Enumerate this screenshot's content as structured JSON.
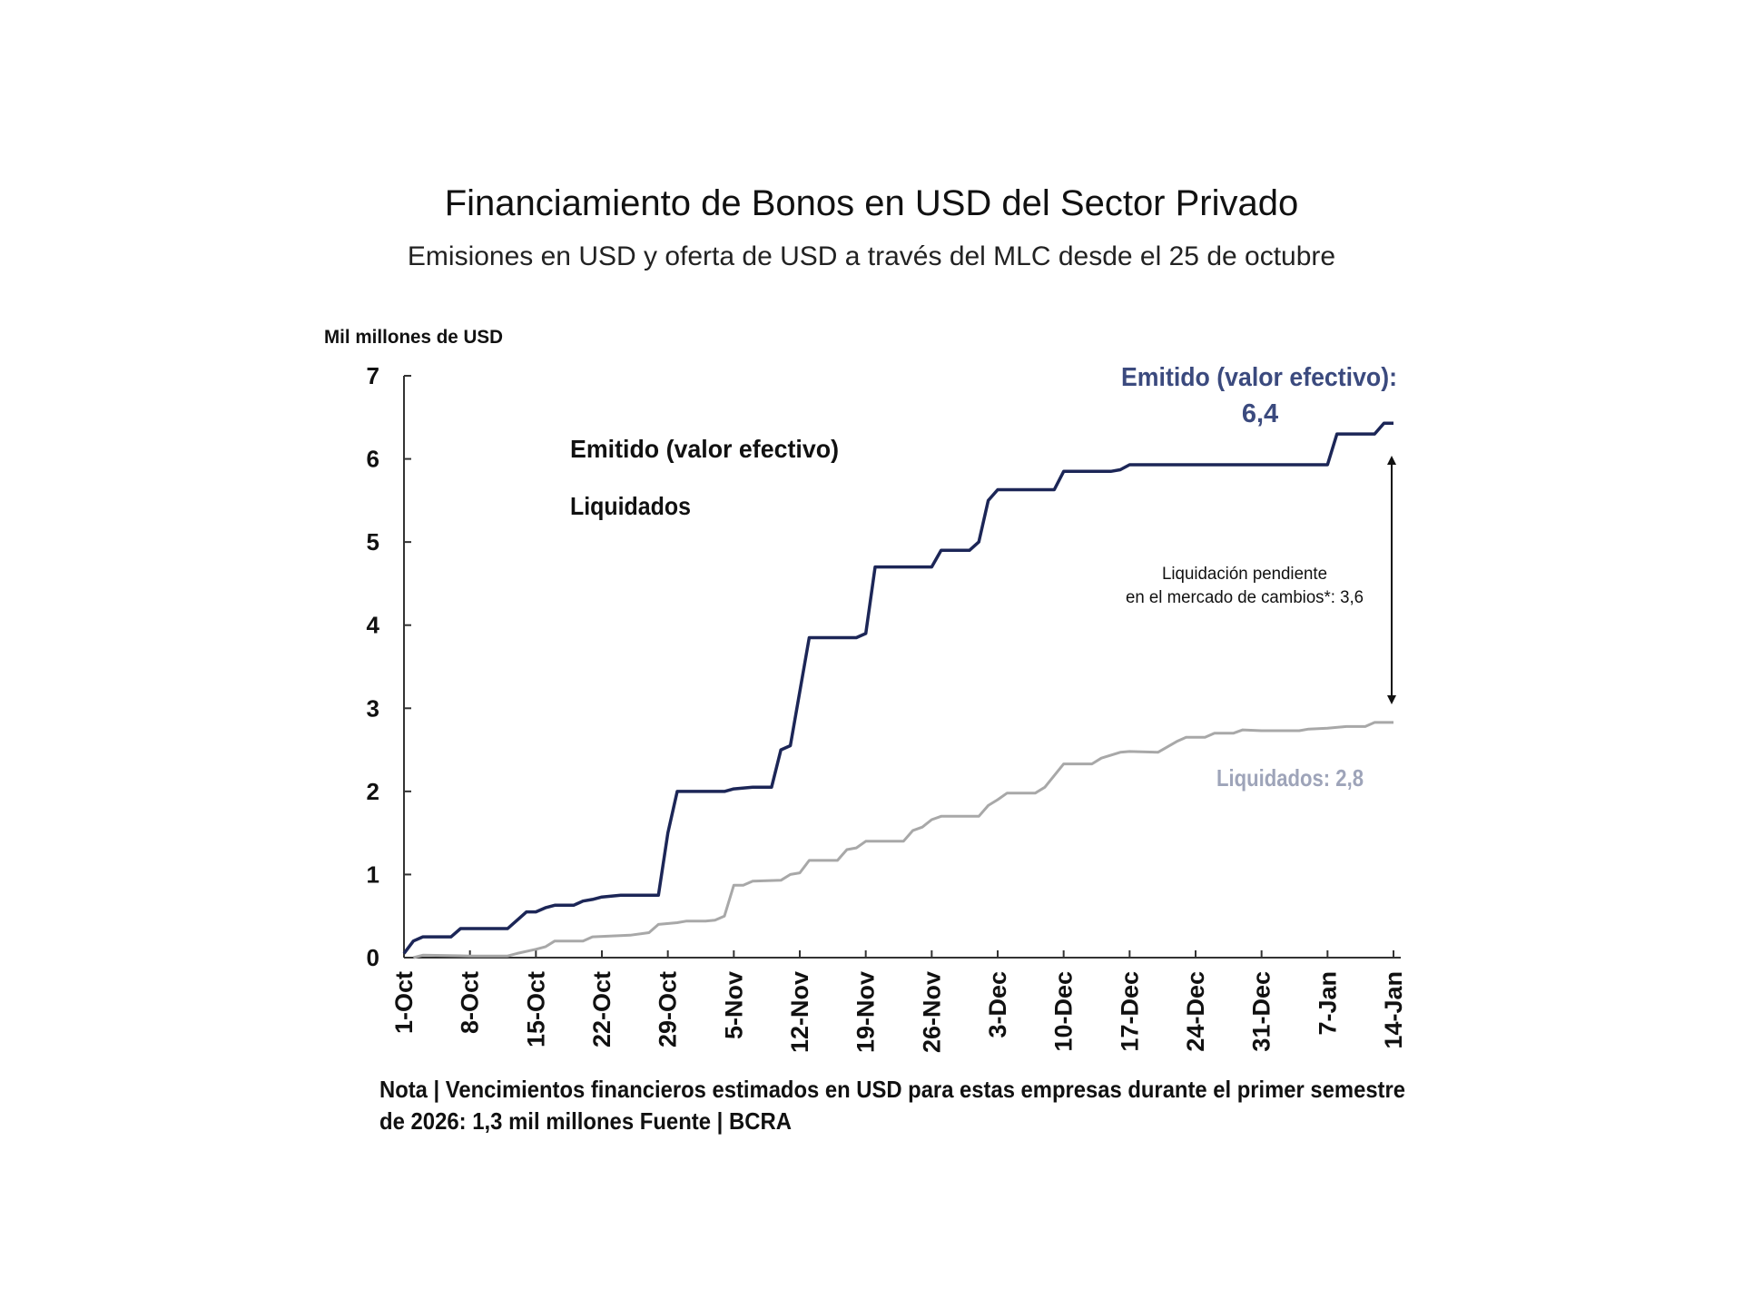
{
  "chart_data": {
    "type": "line",
    "title": "Financiamiento de Bonos en USD del Sector Privado",
    "subtitle": "Emisiones en USD y oferta de USD a través del MLC desde el 25 de octubre",
    "ylabel": "Mil millones de USD",
    "xlabel": "",
    "ylim": [
      0,
      7
    ],
    "yticks": [
      0,
      1,
      2,
      3,
      4,
      5,
      6,
      7
    ],
    "xlim": [
      "2025-10-01",
      "2026-01-14"
    ],
    "xticks": [
      {
        "date": "2025-10-01",
        "label": "1-Oct"
      },
      {
        "date": "2025-10-08",
        "label": "8-Oct"
      },
      {
        "date": "2025-10-15",
        "label": "15-Oct"
      },
      {
        "date": "2025-10-22",
        "label": "22-Oct"
      },
      {
        "date": "2025-10-29",
        "label": "29-Oct"
      },
      {
        "date": "2025-11-05",
        "label": "5-Nov"
      },
      {
        "date": "2025-11-12",
        "label": "12-Nov"
      },
      {
        "date": "2025-11-19",
        "label": "19-Nov"
      },
      {
        "date": "2025-11-26",
        "label": "26-Nov"
      },
      {
        "date": "2025-12-03",
        "label": "3-Dec"
      },
      {
        "date": "2025-12-10",
        "label": "10-Dec"
      },
      {
        "date": "2025-12-17",
        "label": "17-Dec"
      },
      {
        "date": "2025-12-24",
        "label": "24-Dec"
      },
      {
        "date": "2025-12-31",
        "label": "31-Dec"
      },
      {
        "date": "2026-01-07",
        "label": "7-Jan"
      },
      {
        "date": "2026-01-14",
        "label": "14-Jan"
      }
    ],
    "grid": false,
    "legend": {
      "placement": "top-left",
      "entries": [
        "Emitido (valor efectivo)",
        "Liquidados"
      ]
    },
    "series": [
      {
        "name": "Emitido (valor efectivo)",
        "color": "#1c2657",
        "points": [
          [
            "2025-10-01",
            0.05
          ],
          [
            "2025-10-02",
            0.2
          ],
          [
            "2025-10-03",
            0.25
          ],
          [
            "2025-10-06",
            0.25
          ],
          [
            "2025-10-07",
            0.35
          ],
          [
            "2025-10-12",
            0.35
          ],
          [
            "2025-10-13",
            0.45
          ],
          [
            "2025-10-14",
            0.55
          ],
          [
            "2025-10-15",
            0.55
          ],
          [
            "2025-10-16",
            0.6
          ],
          [
            "2025-10-17",
            0.63
          ],
          [
            "2025-10-19",
            0.63
          ],
          [
            "2025-10-20",
            0.68
          ],
          [
            "2025-10-21",
            0.7
          ],
          [
            "2025-10-22",
            0.73
          ],
          [
            "2025-10-24",
            0.75
          ],
          [
            "2025-10-28",
            0.75
          ],
          [
            "2025-10-29",
            1.5
          ],
          [
            "2025-10-30",
            2.0
          ],
          [
            "2025-11-04",
            2.0
          ],
          [
            "2025-11-05",
            2.03
          ],
          [
            "2025-11-07",
            2.05
          ],
          [
            "2025-11-09",
            2.05
          ],
          [
            "2025-11-10",
            2.5
          ],
          [
            "2025-11-11",
            2.55
          ],
          [
            "2025-11-13",
            3.85
          ],
          [
            "2025-11-18",
            3.85
          ],
          [
            "2025-11-19",
            3.9
          ],
          [
            "2025-11-20",
            4.7
          ],
          [
            "2025-11-26",
            4.7
          ],
          [
            "2025-11-27",
            4.9
          ],
          [
            "2025-11-30",
            4.9
          ],
          [
            "2025-12-01",
            5.0
          ],
          [
            "2025-12-02",
            5.5
          ],
          [
            "2025-12-03",
            5.63
          ],
          [
            "2025-12-09",
            5.63
          ],
          [
            "2025-12-10",
            5.85
          ],
          [
            "2025-12-15",
            5.85
          ],
          [
            "2025-12-16",
            5.87
          ],
          [
            "2025-12-17",
            5.93
          ],
          [
            "2026-01-07",
            5.93
          ],
          [
            "2026-01-08",
            6.3
          ],
          [
            "2026-01-12",
            6.3
          ],
          [
            "2026-01-13",
            6.43
          ],
          [
            "2026-01-14",
            6.43
          ]
        ]
      },
      {
        "name": "Liquidados",
        "color": "#a8a8a8",
        "points": [
          [
            "2025-10-02",
            0.0
          ],
          [
            "2025-10-03",
            0.03
          ],
          [
            "2025-10-08",
            0.02
          ],
          [
            "2025-10-12",
            0.02
          ],
          [
            "2025-10-13",
            0.05
          ],
          [
            "2025-10-15",
            0.1
          ],
          [
            "2025-10-16",
            0.13
          ],
          [
            "2025-10-17",
            0.2
          ],
          [
            "2025-10-20",
            0.2
          ],
          [
            "2025-10-21",
            0.25
          ],
          [
            "2025-10-25",
            0.27
          ],
          [
            "2025-10-27",
            0.3
          ],
          [
            "2025-10-28",
            0.4
          ],
          [
            "2025-10-30",
            0.42
          ],
          [
            "2025-10-31",
            0.44
          ],
          [
            "2025-11-02",
            0.44
          ],
          [
            "2025-11-03",
            0.45
          ],
          [
            "2025-11-04",
            0.5
          ],
          [
            "2025-11-05",
            0.87
          ],
          [
            "2025-11-06",
            0.87
          ],
          [
            "2025-11-07",
            0.92
          ],
          [
            "2025-11-10",
            0.93
          ],
          [
            "2025-11-11",
            1.0
          ],
          [
            "2025-11-12",
            1.02
          ],
          [
            "2025-11-13",
            1.17
          ],
          [
            "2025-11-16",
            1.17
          ],
          [
            "2025-11-17",
            1.3
          ],
          [
            "2025-11-18",
            1.32
          ],
          [
            "2025-11-19",
            1.4
          ],
          [
            "2025-11-23",
            1.4
          ],
          [
            "2025-11-24",
            1.53
          ],
          [
            "2025-11-25",
            1.57
          ],
          [
            "2025-11-26",
            1.66
          ],
          [
            "2025-11-27",
            1.7
          ],
          [
            "2025-12-01",
            1.7
          ],
          [
            "2025-12-02",
            1.83
          ],
          [
            "2025-12-03",
            1.9
          ],
          [
            "2025-12-04",
            1.98
          ],
          [
            "2025-12-07",
            1.98
          ],
          [
            "2025-12-08",
            2.05
          ],
          [
            "2025-12-10",
            2.33
          ],
          [
            "2025-12-13",
            2.33
          ],
          [
            "2025-12-14",
            2.4
          ],
          [
            "2025-12-16",
            2.47
          ],
          [
            "2025-12-17",
            2.48
          ],
          [
            "2025-12-20",
            2.47
          ],
          [
            "2025-12-22",
            2.6
          ],
          [
            "2025-12-23",
            2.65
          ],
          [
            "2025-12-25",
            2.65
          ],
          [
            "2025-12-26",
            2.7
          ],
          [
            "2025-12-28",
            2.7
          ],
          [
            "2025-12-29",
            2.74
          ],
          [
            "2025-12-31",
            2.73
          ],
          [
            "2026-01-04",
            2.73
          ],
          [
            "2026-01-05",
            2.75
          ],
          [
            "2026-01-07",
            2.76
          ],
          [
            "2026-01-09",
            2.78
          ],
          [
            "2026-01-11",
            2.78
          ],
          [
            "2026-01-12",
            2.83
          ],
          [
            "2026-01-14",
            2.83
          ]
        ]
      }
    ],
    "annotations": {
      "emitido_label_line1": "Emitido (valor efectivo):",
      "emitido_label_line2": "6,4",
      "emitido_label_color": "#3b4a7e",
      "liquidados_label": "Liquidados: 2,8",
      "liquidados_label_color": "#9ea4b9",
      "pending_line1": "Liquidación pendiente",
      "pending_line2": "en el mercado de cambios*: 3,6"
    },
    "note_line1": "Nota | Vencimientos financieros estimados en USD para estas empresas durante el primer semestre",
    "note_line2": "de 2026: 1,3 mil millones Fuente | BCRA"
  }
}
